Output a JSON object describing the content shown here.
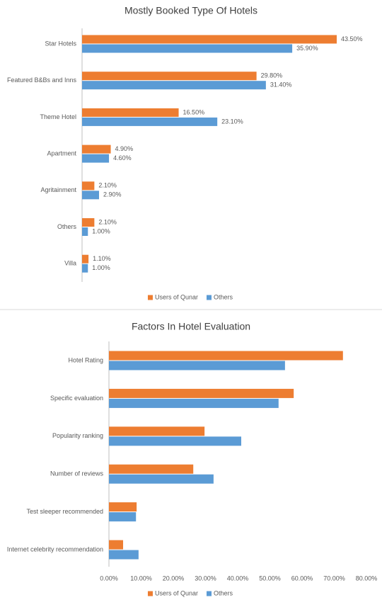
{
  "chart_data": [
    {
      "type": "hbar",
      "title": "Mostly Booked Type Of Hotels",
      "categories": [
        "Star Hotels",
        "Featured B&Bs and Inns",
        "Theme Hotel",
        "Apartment",
        "Agritainment",
        "Others",
        "Villa"
      ],
      "series": [
        {
          "name": "Users of Qunar",
          "color": "#ed7d31",
          "values": [
            43.5,
            29.8,
            16.5,
            4.9,
            2.1,
            2.1,
            1.1
          ],
          "value_labels": [
            "43.50%",
            "29.80%",
            "16.50%",
            "4.90%",
            "2.10%",
            "2.10%",
            "1.10%"
          ]
        },
        {
          "name": "Others",
          "color": "#5b9bd5",
          "values": [
            35.9,
            31.4,
            23.1,
            4.6,
            2.9,
            1.0,
            1.0
          ],
          "value_labels": [
            "35.90%",
            "31.40%",
            "23.10%",
            "4.60%",
            "2.90%",
            "1.00%",
            "1.00%"
          ]
        }
      ]
    },
    {
      "type": "hbar",
      "title": "Factors In Hotel Evaluation",
      "categories": [
        "Hotel Rating",
        "Specific evaluation",
        "Popularity ranking",
        "Number of reviews",
        "Test sleeper recommended",
        "Internet celebrity recommendation"
      ],
      "series": [
        {
          "name": "Users of Qunar",
          "color": "#ed7d31",
          "values": [
            72.7,
            57.4,
            29.7,
            26.2,
            8.6,
            4.4
          ]
        },
        {
          "name": "Others",
          "color": "#5b9bd5",
          "values": [
            54.7,
            52.7,
            41.1,
            32.5,
            8.4,
            9.2
          ]
        }
      ],
      "xlim": [
        0,
        80
      ],
      "xticks": [
        {
          "value": 0,
          "label": "0.00%"
        },
        {
          "value": 10,
          "label": "10.00%"
        },
        {
          "value": 20,
          "label": "20.00%"
        },
        {
          "value": 30,
          "label": "30.00%"
        },
        {
          "value": 40,
          "label": "40.00%"
        },
        {
          "value": 50,
          "label": "50.00%"
        },
        {
          "value": 60,
          "label": "60.00%"
        },
        {
          "value": 70,
          "label": "70.00%"
        },
        {
          "value": 80,
          "label": "80.00%"
        }
      ]
    }
  ]
}
